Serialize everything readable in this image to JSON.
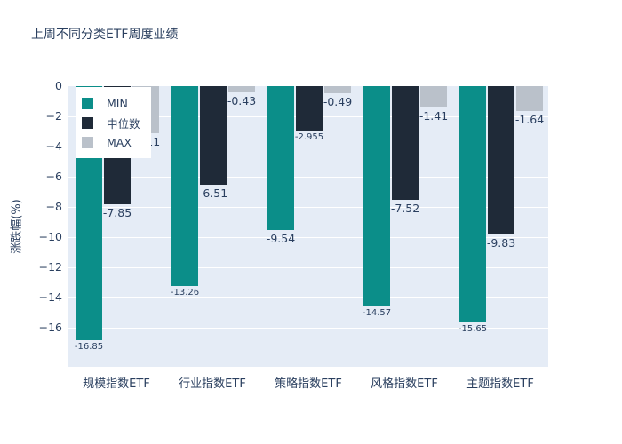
{
  "chart_data": {
    "type": "bar",
    "title": "上周不同分类ETF周度业绩",
    "ylabel": "涨跌幅(%)",
    "xlabel": "",
    "categories": [
      "规模指数ETF",
      "行业指数ETF",
      "策略指数ETF",
      "风格指数ETF",
      "主题指数ETF"
    ],
    "series": [
      {
        "name": "MIN",
        "color": "#0b8e89",
        "values": [
          -16.85,
          -13.26,
          -9.54,
          -14.57,
          -15.65
        ],
        "labels": [
          "-16.85",
          "-13.26",
          "-9.54",
          "-14.57",
          "-15.65"
        ]
      },
      {
        "name": "中位数",
        "color": "#1f2a38",
        "values": [
          -7.85,
          -6.51,
          -2.955,
          -7.52,
          -9.83
        ],
        "labels": [
          "-7.85",
          "-6.51",
          "-2.955",
          "-7.52",
          "-9.83"
        ]
      },
      {
        "name": "MAX",
        "color": "#bac1ca",
        "values": [
          -3.11,
          -0.43,
          -0.49,
          -1.41,
          -1.64
        ],
        "labels": [
          "-3.11",
          "-0.43",
          "-0.49",
          "-1.41",
          "-1.64"
        ]
      }
    ],
    "yticks": [
      {
        "value": 0,
        "label": "0"
      },
      {
        "value": -2,
        "label": "−2"
      },
      {
        "value": -4,
        "label": "−4"
      },
      {
        "value": -6,
        "label": "−6"
      },
      {
        "value": -8,
        "label": "−8"
      },
      {
        "value": -10,
        "label": "−10"
      },
      {
        "value": -12,
        "label": "−12"
      },
      {
        "value": -14,
        "label": "−14"
      },
      {
        "value": -16,
        "label": "−16"
      }
    ],
    "ylim": [
      -18.6,
      0
    ],
    "grid": true,
    "legend_position": "top-left-inside",
    "colors": {
      "paper_bg": "#ffffff",
      "plot_bg": "#e5ecf6",
      "grid": "#ffffff",
      "text": "#2a3f5f"
    }
  }
}
